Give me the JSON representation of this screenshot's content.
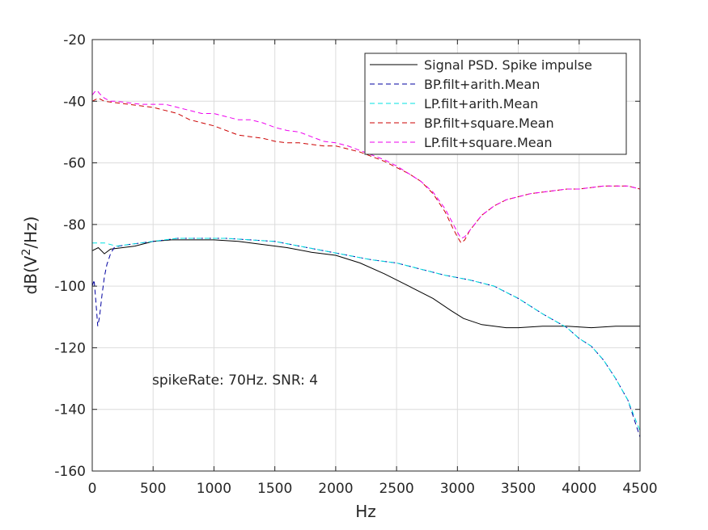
{
  "chart_data": {
    "type": "line",
    "xlabel": "Hz",
    "ylabel": "dB(V²/Hz)",
    "ylabel_parts": {
      "base": "dB(V",
      "sup": "2",
      "tail": "/Hz)"
    },
    "xlim": [
      0,
      4500
    ],
    "ylim": [
      -160,
      -20
    ],
    "xticks": [
      0,
      500,
      1000,
      1500,
      2000,
      2500,
      3000,
      3500,
      4000,
      4500
    ],
    "yticks": [
      -160,
      -140,
      -120,
      -100,
      -80,
      -60,
      -40,
      -20
    ],
    "grid": true,
    "legend_position": "top-right",
    "annotation": "spikeRate: 70Hz. SNR: 4",
    "series": [
      {
        "name": "Signal PSD. Spike impulse",
        "color": "#000000",
        "dash": "solid",
        "x": [
          0,
          50,
          100,
          150,
          250,
          350,
          500,
          650,
          800,
          1000,
          1200,
          1400,
          1600,
          1800,
          2000,
          2200,
          2400,
          2600,
          2800,
          2950,
          3050,
          3200,
          3400,
          3500,
          3700,
          3900,
          4100,
          4300,
          4500
        ],
        "y": [
          -88.5,
          -87.5,
          -89.5,
          -88,
          -87.5,
          -87,
          -85.5,
          -85,
          -85,
          -85,
          -85.5,
          -86.5,
          -87.5,
          -89,
          -90,
          -92.5,
          -96,
          -100,
          -104,
          -108,
          -110.5,
          -112.5,
          -113.5,
          -113.5,
          -113,
          -113,
          -113.5,
          -113,
          -113
        ]
      },
      {
        "name": "BP.filt+arith.Mean",
        "color": "#0000a0",
        "dash": "dashed",
        "x": [
          0,
          15,
          30,
          45,
          60,
          80,
          100,
          120,
          150,
          180,
          220,
          300,
          500,
          700,
          900,
          1100,
          1300,
          1500,
          1700,
          1900,
          2100,
          2300,
          2500,
          2700,
          2900,
          3100,
          3300,
          3500,
          3700,
          3900,
          4000,
          4100,
          4200,
          4300,
          4400,
          4500
        ],
        "y": [
          -100,
          -98,
          -105,
          -113,
          -110,
          -103,
          -97,
          -93,
          -89.5,
          -87.5,
          -87,
          -86.5,
          -85.5,
          -84.5,
          -84.5,
          -84.5,
          -85,
          -85.5,
          -87,
          -88.5,
          -90,
          -91.5,
          -92.5,
          -94.5,
          -96.5,
          -98,
          -100,
          -104,
          -109,
          -113.5,
          -117,
          -119.5,
          -124,
          -130,
          -137,
          -149
        ]
      },
      {
        "name": "LP.filt+arith.Mean",
        "color": "#00e0e0",
        "dash": "dashed",
        "x": [
          0,
          100,
          200,
          300,
          500,
          700,
          900,
          1100,
          1300,
          1500,
          1700,
          1900,
          2100,
          2300,
          2500,
          2700,
          2900,
          3100,
          3300,
          3500,
          3700,
          3900,
          4000,
          4100,
          4200,
          4300,
          4400,
          4500
        ],
        "y": [
          -86,
          -86,
          -87,
          -86.5,
          -85.5,
          -84.5,
          -84.5,
          -84.5,
          -85,
          -85.5,
          -87,
          -88.5,
          -90,
          -91.5,
          -92.5,
          -94.5,
          -96.5,
          -98,
          -100,
          -104,
          -109,
          -113.5,
          -117,
          -119.5,
          -124,
          -130,
          -137,
          -147
        ]
      },
      {
        "name": "BP.filt+square.Mean",
        "color": "#cc0000",
        "dash": "dashed",
        "x": [
          0,
          50,
          100,
          200,
          300,
          400,
          500,
          600,
          700,
          800,
          900,
          1000,
          1100,
          1200,
          1300,
          1400,
          1500,
          1600,
          1700,
          1800,
          1900,
          2000,
          2100,
          2200,
          2300,
          2400,
          2500,
          2600,
          2700,
          2800,
          2900,
          2960,
          3000,
          3030,
          3060,
          3100,
          3200,
          3300,
          3400,
          3500,
          3600,
          3700,
          3800,
          3900,
          4000,
          4100,
          4200,
          4300,
          4400,
          4500
        ],
        "y": [
          -40,
          -39,
          -40,
          -40.5,
          -41,
          -41.5,
          -42,
          -43,
          -44,
          -46,
          -47,
          -48,
          -49.5,
          -51,
          -51.5,
          -52,
          -53,
          -53.5,
          -53.5,
          -54,
          -54.5,
          -54.5,
          -55.5,
          -56.5,
          -58,
          -59.5,
          -61.5,
          -63.5,
          -66,
          -70,
          -76,
          -81,
          -84,
          -86,
          -85,
          -82,
          -77,
          -74,
          -72,
          -71,
          -70,
          -69.5,
          -69,
          -68.5,
          -68.5,
          -68,
          -67.5,
          -67.5,
          -67.5,
          -68.5
        ]
      },
      {
        "name": "LP.filt+square.Mean",
        "color": "#ee00ee",
        "dash": "dashed",
        "x": [
          0,
          20,
          40,
          60,
          100,
          150,
          200,
          300,
          400,
          500,
          600,
          700,
          800,
          900,
          1000,
          1100,
          1200,
          1300,
          1400,
          1500,
          1600,
          1700,
          1800,
          1900,
          2000,
          2100,
          2200,
          2300,
          2400,
          2500,
          2600,
          2700,
          2800,
          2900,
          2960,
          3000,
          3030,
          3060,
          3100,
          3200,
          3300,
          3400,
          3500,
          3600,
          3700,
          3800,
          3900,
          4000,
          4100,
          4200,
          4300,
          4400,
          4500
        ],
        "y": [
          -38,
          -37,
          -36.5,
          -37.5,
          -39,
          -40,
          -40,
          -40.5,
          -41,
          -41,
          -41,
          -42,
          -43,
          -44,
          -44,
          -45,
          -46,
          -46,
          -47,
          -48.5,
          -49.5,
          -50,
          -51.5,
          -53,
          -53.5,
          -54.5,
          -56,
          -57.5,
          -59,
          -61,
          -63.5,
          -66,
          -69.5,
          -75,
          -79.5,
          -82.5,
          -84.5,
          -84,
          -82,
          -77,
          -74,
          -72,
          -71,
          -70,
          -69.5,
          -69,
          -68.5,
          -68.5,
          -68,
          -67.5,
          -67.5,
          -67.5,
          -68.5
        ]
      }
    ]
  }
}
